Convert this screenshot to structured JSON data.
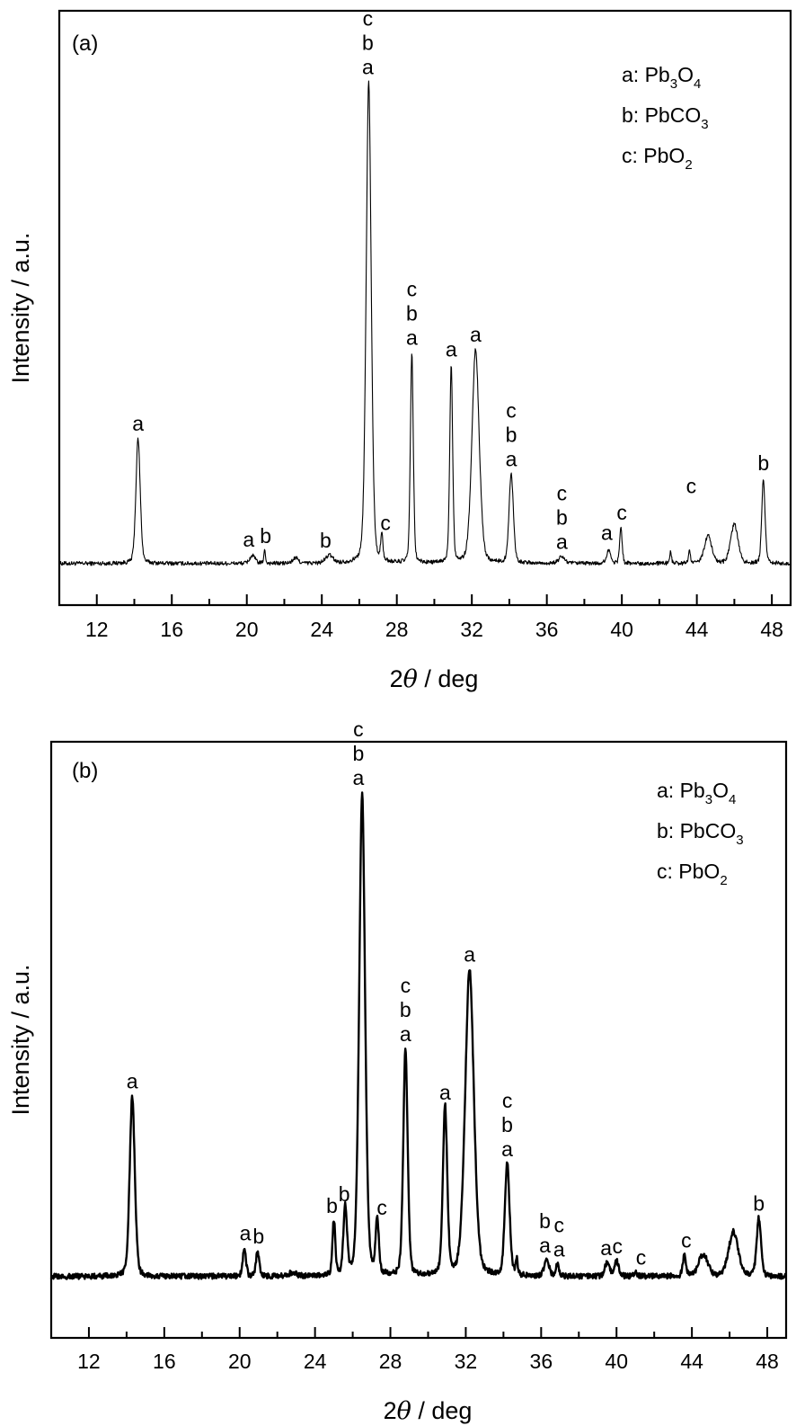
{
  "figure": {
    "panels": [
      "(a)",
      "(b)"
    ]
  },
  "chart_data": [
    {
      "type": "line",
      "panel_label": "(a)",
      "title": "",
      "xlabel_prefix": "2",
      "xlabel_symbol": "θ",
      "xlabel_suffix": " / deg",
      "ylabel": "Intensity / a.u.",
      "xlim": [
        10,
        49
      ],
      "ylim": [
        0,
        100
      ],
      "xticks": [
        12,
        16,
        20,
        24,
        28,
        32,
        36,
        40,
        44,
        48
      ],
      "xtick_labels": [
        "12",
        "16",
        "20",
        "24",
        "28",
        "32",
        "36",
        "40",
        "44",
        "48"
      ],
      "yticks_shown": false,
      "grid": false,
      "line_color": "#000000",
      "line_weight": "thin",
      "baseline": 7,
      "noise": 0.35,
      "peaks": [
        {
          "x": 14.2,
          "y": 28.0,
          "w": 0.12
        },
        {
          "x": 20.3,
          "y": 8.3,
          "w": 0.15
        },
        {
          "x": 20.95,
          "y": 9.1,
          "w": 0.05
        },
        {
          "x": 22.6,
          "y": 7.9,
          "w": 0.15
        },
        {
          "x": 24.4,
          "y": 8.3,
          "w": 0.2
        },
        {
          "x": 26.5,
          "y": 88.0,
          "w": 0.14
        },
        {
          "x": 27.2,
          "y": 11.3,
          "w": 0.06
        },
        {
          "x": 28.8,
          "y": 42.4,
          "w": 0.08
        },
        {
          "x": 30.9,
          "y": 40.5,
          "w": 0.08
        },
        {
          "x": 32.2,
          "y": 43.0,
          "w": 0.2
        },
        {
          "x": 34.1,
          "y": 22.0,
          "w": 0.12
        },
        {
          "x": 36.8,
          "y": 8.1,
          "w": 0.17
        },
        {
          "x": 39.3,
          "y": 9.2,
          "w": 0.12
        },
        {
          "x": 39.95,
          "y": 13.0,
          "w": 0.07
        },
        {
          "x": 42.6,
          "y": 9.0,
          "w": 0.05
        },
        {
          "x": 43.6,
          "y": 9.5,
          "w": 0.05
        },
        {
          "x": 44.6,
          "y": 11.7,
          "w": 0.2
        },
        {
          "x": 46.0,
          "y": 13.6,
          "w": 0.2
        },
        {
          "x": 47.55,
          "y": 21.3,
          "w": 0.09
        }
      ],
      "annotations": [
        {
          "x": 14.2,
          "y": 28.0,
          "labels": [
            "a"
          ]
        },
        {
          "x": 20.1,
          "y": 8.5,
          "labels": [
            "a"
          ]
        },
        {
          "x": 21.0,
          "y": 9.1,
          "labels": [
            "b"
          ]
        },
        {
          "x": 24.2,
          "y": 8.3,
          "labels": [
            "b"
          ]
        },
        {
          "x": 26.45,
          "y": 88.0,
          "labels": [
            "a",
            "b",
            "c"
          ]
        },
        {
          "x": 27.4,
          "y": 11.3,
          "labels": [
            "c"
          ]
        },
        {
          "x": 28.8,
          "y": 42.4,
          "labels": [
            "a",
            "b",
            "c"
          ]
        },
        {
          "x": 30.9,
          "y": 40.5,
          "labels": [
            "a"
          ]
        },
        {
          "x": 32.2,
          "y": 43.0,
          "labels": [
            "a"
          ]
        },
        {
          "x": 34.1,
          "y": 22.0,
          "labels": [
            "a",
            "b",
            "c"
          ]
        },
        {
          "x": 36.8,
          "y": 8.1,
          "labels": [
            "a",
            "b",
            "c"
          ]
        },
        {
          "x": 39.2,
          "y": 9.6,
          "labels": [
            "a"
          ]
        },
        {
          "x": 40.0,
          "y": 13.0,
          "labels": [
            "c"
          ]
        },
        {
          "x": 43.7,
          "y": 17.5,
          "labels": [
            "c"
          ]
        },
        {
          "x": 47.55,
          "y": 21.3,
          "labels": [
            "b"
          ]
        }
      ],
      "legend": {
        "placement": "top-right",
        "entries": [
          {
            "key": "a",
            "formula": [
              [
                "Pb",
                ""
              ],
              [
                "3",
                "sub"
              ],
              [
                "O",
                ""
              ],
              [
                "4",
                "sub"
              ]
            ]
          },
          {
            "key": "b",
            "formula": [
              [
                "PbCO",
                ""
              ],
              [
                "3",
                "sub"
              ]
            ]
          },
          {
            "key": "c",
            "formula": [
              [
                "PbO",
                ""
              ],
              [
                "2",
                "sub"
              ]
            ]
          }
        ]
      }
    },
    {
      "type": "line",
      "panel_label": "(b)",
      "title": "",
      "xlabel_prefix": "2",
      "xlabel_symbol": "θ",
      "xlabel_suffix": " / deg",
      "ylabel": "Intensity / a.u.",
      "xlim": [
        10,
        49
      ],
      "ylim": [
        0,
        100
      ],
      "xticks": [
        12,
        16,
        20,
        24,
        28,
        32,
        36,
        40,
        44,
        48
      ],
      "xtick_labels": [
        "12",
        "16",
        "20",
        "24",
        "28",
        "32",
        "36",
        "40",
        "44",
        "48"
      ],
      "yticks_shown": false,
      "grid": false,
      "line_color": "#000000",
      "line_weight": "thick",
      "baseline": 10.3,
      "noise": 0.45,
      "peaks": [
        {
          "x": 14.3,
          "y": 40.5,
          "w": 0.14
        },
        {
          "x": 20.25,
          "y": 15.0,
          "w": 0.09
        },
        {
          "x": 20.95,
          "y": 14.5,
          "w": 0.09
        },
        {
          "x": 22.8,
          "y": 10.9,
          "w": 0.2
        },
        {
          "x": 25.0,
          "y": 19.6,
          "w": 0.08
        },
        {
          "x": 25.6,
          "y": 21.6,
          "w": 0.1
        },
        {
          "x": 26.5,
          "y": 91.4,
          "w": 0.16
        },
        {
          "x": 27.3,
          "y": 19.3,
          "w": 0.09
        },
        {
          "x": 28.8,
          "y": 48.4,
          "w": 0.12
        },
        {
          "x": 30.9,
          "y": 38.6,
          "w": 0.12
        },
        {
          "x": 32.2,
          "y": 61.8,
          "w": 0.24
        },
        {
          "x": 34.2,
          "y": 29.1,
          "w": 0.13
        },
        {
          "x": 34.7,
          "y": 13.0,
          "w": 0.06
        },
        {
          "x": 36.3,
          "y": 13.0,
          "w": 0.13
        },
        {
          "x": 36.85,
          "y": 12.3,
          "w": 0.08
        },
        {
          "x": 39.5,
          "y": 12.5,
          "w": 0.13
        },
        {
          "x": 40.0,
          "y": 12.8,
          "w": 0.13
        },
        {
          "x": 41.0,
          "y": 10.9,
          "w": 0.1
        },
        {
          "x": 42.7,
          "y": 10.3,
          "w": 0.08
        },
        {
          "x": 43.6,
          "y": 13.8,
          "w": 0.09
        },
        {
          "x": 44.6,
          "y": 14.0,
          "w": 0.25
        },
        {
          "x": 46.2,
          "y": 17.8,
          "w": 0.26
        },
        {
          "x": 47.55,
          "y": 20.0,
          "w": 0.12
        }
      ],
      "annotations": [
        {
          "x": 14.3,
          "y": 40.5,
          "labels": [
            "a"
          ]
        },
        {
          "x": 20.3,
          "y": 15.0,
          "labels": [
            "a"
          ]
        },
        {
          "x": 21.0,
          "y": 14.5,
          "labels": [
            "b"
          ]
        },
        {
          "x": 24.9,
          "y": 19.6,
          "labels": [
            "b"
          ]
        },
        {
          "x": 25.55,
          "y": 21.6,
          "labels": [
            "b"
          ]
        },
        {
          "x": 26.3,
          "y": 91.4,
          "labels": [
            "a",
            "b",
            "c"
          ]
        },
        {
          "x": 27.55,
          "y": 19.3,
          "labels": [
            "c"
          ]
        },
        {
          "x": 28.8,
          "y": 48.4,
          "labels": [
            "a",
            "b",
            "c"
          ]
        },
        {
          "x": 30.9,
          "y": 38.6,
          "labels": [
            "a"
          ]
        },
        {
          "x": 32.2,
          "y": 61.8,
          "labels": [
            "a"
          ]
        },
        {
          "x": 34.2,
          "y": 29.1,
          "labels": [
            "a",
            "b",
            "c"
          ]
        },
        {
          "x": 36.2,
          "y": 13.0,
          "labels": [
            "a",
            "b"
          ]
        },
        {
          "x": 36.95,
          "y": 12.3,
          "labels": [
            "a",
            "c"
          ]
        },
        {
          "x": 39.45,
          "y": 12.5,
          "labels": [
            "a"
          ]
        },
        {
          "x": 40.05,
          "y": 12.8,
          "labels": [
            "c"
          ]
        },
        {
          "x": 41.3,
          "y": 10.9,
          "labels": [
            "c"
          ]
        },
        {
          "x": 43.7,
          "y": 13.8,
          "labels": [
            "c"
          ]
        },
        {
          "x": 47.55,
          "y": 20.0,
          "labels": [
            "b"
          ]
        }
      ],
      "legend": {
        "placement": "top-right",
        "entries": [
          {
            "key": "a",
            "formula": [
              [
                "Pb",
                ""
              ],
              [
                "3",
                "sub"
              ],
              [
                "O",
                ""
              ],
              [
                "4",
                "sub"
              ]
            ]
          },
          {
            "key": "b",
            "formula": [
              [
                "PbCO",
                ""
              ],
              [
                "3",
                "sub"
              ]
            ]
          },
          {
            "key": "c",
            "formula": [
              [
                "PbO",
                ""
              ],
              [
                "2",
                "sub"
              ]
            ]
          }
        ]
      }
    }
  ]
}
